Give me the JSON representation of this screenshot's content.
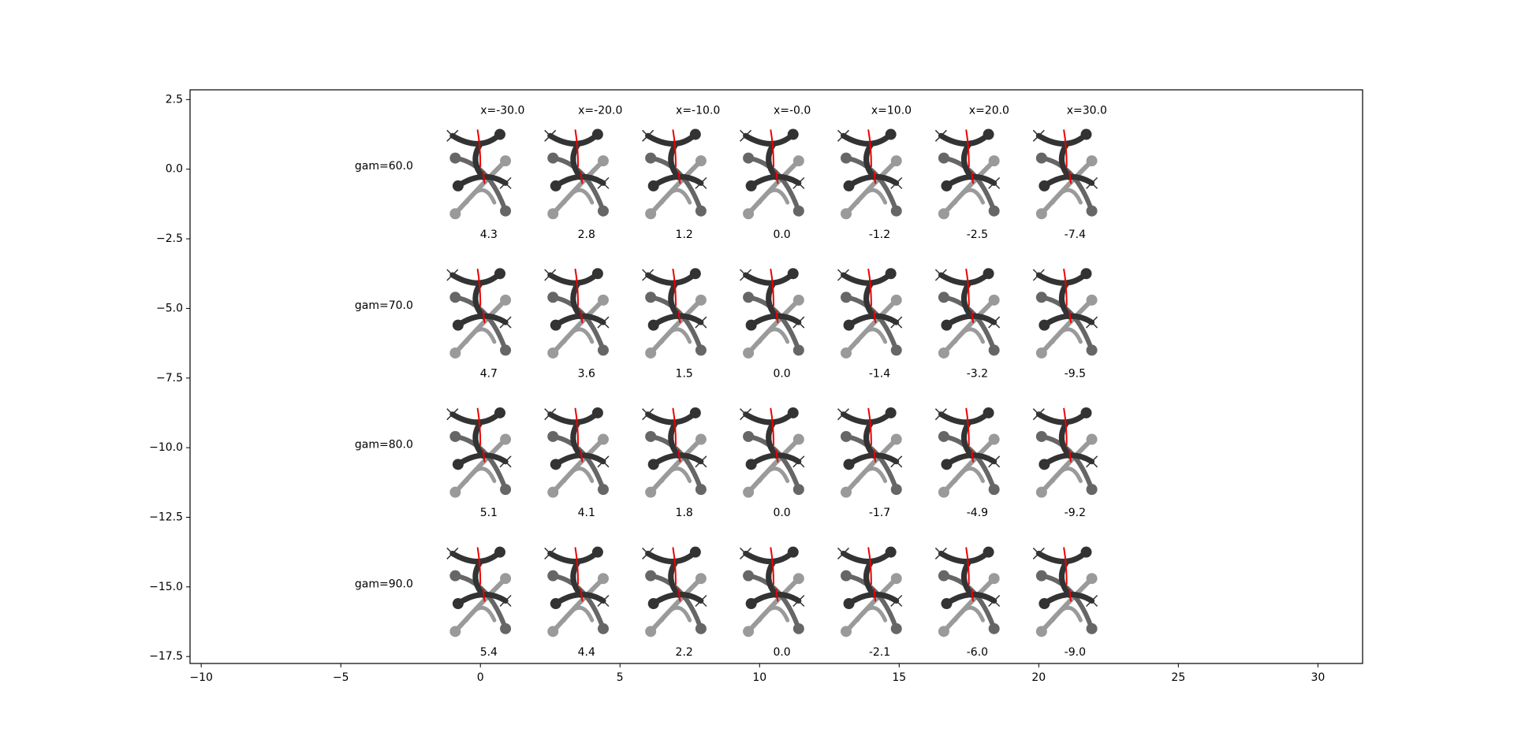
{
  "chart_data": {
    "type": "glyph-grid",
    "columns": [
      "x=-30.0",
      "x=-20.0",
      "x=-10.0",
      "x=-0.0",
      "x=10.0",
      "x=20.0",
      "x=30.0"
    ],
    "rows": [
      "gam=60.0",
      "gam=70.0",
      "gam=80.0",
      "gam=90.0"
    ],
    "cell_labels": [
      [
        "4.3",
        "2.8",
        "1.2",
        "0.0",
        "-1.2",
        "-2.5",
        "-7.4"
      ],
      [
        "4.7",
        "3.6",
        "1.5",
        "0.0",
        "-1.4",
        "-3.2",
        "-9.5"
      ],
      [
        "5.1",
        "4.1",
        "1.8",
        "0.0",
        "-1.7",
        "-4.9",
        "-9.2"
      ],
      [
        "5.4",
        "4.4",
        "2.2",
        "0.0",
        "-2.1",
        "-6.0",
        "-9.0"
      ]
    ],
    "xlim": [
      -10.4,
      31.6
    ],
    "ylim": [
      -17.75,
      2.85
    ],
    "xticks": [
      {
        "value": -10,
        "label": "−10"
      },
      {
        "value": -5,
        "label": "−5"
      },
      0,
      5,
      10,
      15,
      20,
      25,
      30
    ],
    "yticks": [
      {
        "value": 2.5,
        "label": "2.5"
      },
      {
        "value": 0,
        "label": "0.0"
      },
      {
        "value": -2.5,
        "label": "−2.5"
      },
      {
        "value": -5,
        "label": "−5.0"
      },
      {
        "value": -7.5,
        "label": "−7.5"
      },
      {
        "value": -10,
        "label": "−10.0"
      },
      {
        "value": -12.5,
        "label": "−12.5"
      },
      {
        "value": -15,
        "label": "−15.0"
      },
      {
        "value": -17.5,
        "label": "−17.5"
      }
    ]
  }
}
